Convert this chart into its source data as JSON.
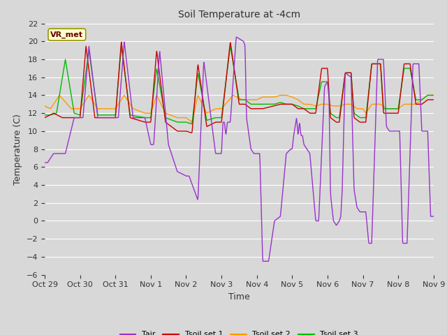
{
  "title": "Soil Temperature at -4cm",
  "xlabel": "Time",
  "ylabel": "Temperature (C)",
  "ylim": [
    -6,
    22
  ],
  "yticks": [
    -6,
    -4,
    -2,
    0,
    2,
    4,
    6,
    8,
    10,
    12,
    14,
    16,
    18,
    20,
    22
  ],
  "xtick_labels": [
    "Oct 29",
    "Oct 30",
    "Oct 31",
    "Nov 1",
    "Nov 2",
    "Nov 3",
    "Nov 4",
    "Nov 5",
    "Nov 6",
    "Nov 7",
    "Nov 8",
    "Nov 9"
  ],
  "background_color": "#d8d8d8",
  "plot_bg_color": "#d8d8d8",
  "grid_color": "#ffffff",
  "annotation_text": "VR_met",
  "annotation_bg": "#ffffcc",
  "annotation_border": "#999900",
  "colors": {
    "Tair": "#9933cc",
    "Tsoil1": "#cc0000",
    "Tsoil2": "#ff9900",
    "Tsoil3": "#00bb00"
  },
  "legend_labels": [
    "Tair",
    "Tsoil set 1",
    "Tsoil set 2",
    "Tsoil set 3"
  ]
}
